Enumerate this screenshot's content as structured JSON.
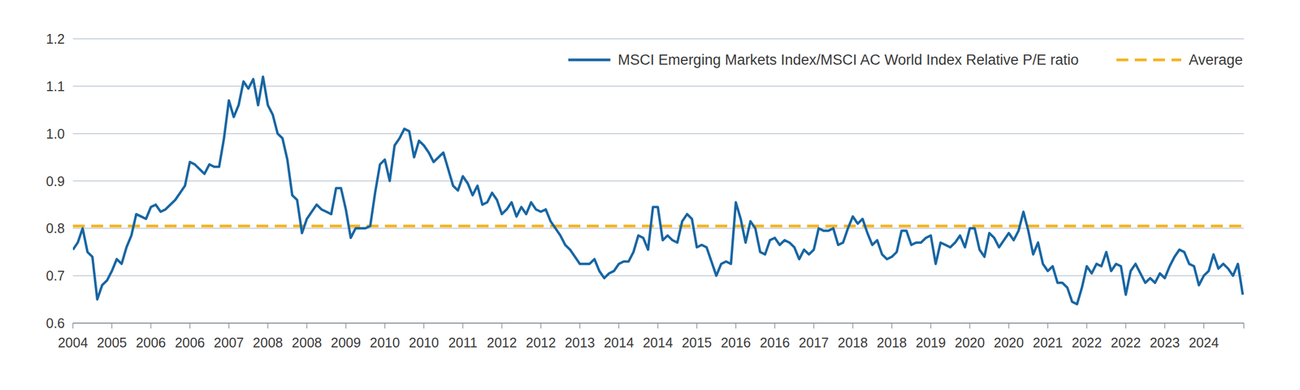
{
  "chart_data": {
    "type": "line",
    "categories": [
      "2004",
      null,
      null,
      null,
      null,
      null,
      null,
      null,
      "2005",
      null,
      null,
      null,
      null,
      null,
      null,
      null,
      "2006",
      null,
      null,
      null,
      null,
      null,
      null,
      null,
      "2006",
      null,
      null,
      null,
      null,
      null,
      null,
      null,
      "2007",
      null,
      null,
      null,
      null,
      null,
      null,
      null,
      "2008",
      null,
      null,
      null,
      null,
      null,
      null,
      null,
      "2008",
      null,
      null,
      null,
      null,
      null,
      null,
      null,
      "2009",
      null,
      null,
      null,
      null,
      null,
      null,
      null,
      "2010",
      null,
      null,
      null,
      null,
      null,
      null,
      null,
      "2010",
      null,
      null,
      null,
      null,
      null,
      null,
      null,
      "2011",
      null,
      null,
      null,
      null,
      null,
      null,
      null,
      "2012",
      null,
      null,
      null,
      null,
      null,
      null,
      null,
      "2012",
      null,
      null,
      null,
      null,
      null,
      null,
      null,
      "2013",
      null,
      null,
      null,
      null,
      null,
      null,
      null,
      "2014",
      null,
      null,
      null,
      null,
      null,
      null,
      null,
      "2014",
      null,
      null,
      null,
      null,
      null,
      null,
      null,
      "2015",
      null,
      null,
      null,
      null,
      null,
      null,
      null,
      "2016",
      null,
      null,
      null,
      null,
      null,
      null,
      null,
      "2016",
      null,
      null,
      null,
      null,
      null,
      null,
      null,
      "2017",
      null,
      null,
      null,
      null,
      null,
      null,
      null,
      "2018",
      null,
      null,
      null,
      null,
      null,
      null,
      null,
      "2018",
      null,
      null,
      null,
      null,
      null,
      null,
      null,
      "2019",
      null,
      null,
      null,
      null,
      null,
      null,
      null,
      "2020",
      null,
      null,
      null,
      null,
      null,
      null,
      null,
      "2020",
      null,
      null,
      null,
      null,
      null,
      null,
      null,
      "2021",
      null,
      null,
      null,
      null,
      null,
      null,
      null,
      "2022",
      null,
      null,
      null,
      null,
      null,
      null,
      null,
      "2022",
      null,
      null,
      null,
      null,
      null,
      null,
      null,
      "2023",
      null,
      null,
      null,
      null,
      null,
      null,
      null,
      "2024",
      null,
      null,
      null,
      null,
      null,
      null,
      null,
      null
    ],
    "series": [
      {
        "name": "MSCI Emerging Markets Index/MSCI AC World Index Relative P/E ratio",
        "color": "#1866a3",
        "values": [
          0.755,
          0.77,
          0.8,
          0.75,
          0.74,
          0.65,
          0.68,
          0.69,
          0.71,
          0.735,
          0.725,
          0.76,
          0.785,
          0.83,
          0.825,
          0.82,
          0.845,
          0.85,
          0.835,
          0.84,
          0.85,
          0.86,
          0.875,
          0.89,
          0.94,
          0.935,
          0.925,
          0.915,
          0.935,
          0.93,
          0.93,
          0.99,
          1.07,
          1.035,
          1.06,
          1.11,
          1.095,
          1.115,
          1.06,
          1.12,
          1.06,
          1.04,
          1.0,
          0.99,
          0.945,
          0.87,
          0.86,
          0.79,
          0.82,
          0.835,
          0.85,
          0.84,
          0.835,
          0.83,
          0.885,
          0.885,
          0.84,
          0.78,
          0.8,
          0.8,
          0.8,
          0.805,
          0.875,
          0.935,
          0.945,
          0.9,
          0.975,
          0.99,
          1.01,
          1.005,
          0.95,
          0.985,
          0.975,
          0.96,
          0.94,
          0.95,
          0.96,
          0.925,
          0.89,
          0.88,
          0.91,
          0.895,
          0.87,
          0.89,
          0.85,
          0.855,
          0.875,
          0.86,
          0.83,
          0.84,
          0.855,
          0.825,
          0.845,
          0.83,
          0.855,
          0.84,
          0.835,
          0.84,
          0.815,
          0.8,
          0.785,
          0.765,
          0.755,
          0.74,
          0.725,
          0.725,
          0.725,
          0.735,
          0.71,
          0.695,
          0.705,
          0.71,
          0.725,
          0.73,
          0.73,
          0.75,
          0.785,
          0.78,
          0.755,
          0.845,
          0.845,
          0.775,
          0.785,
          0.775,
          0.77,
          0.815,
          0.83,
          0.82,
          0.76,
          0.765,
          0.76,
          0.73,
          0.7,
          0.725,
          0.73,
          0.725,
          0.855,
          0.82,
          0.77,
          0.815,
          0.8,
          0.75,
          0.745,
          0.775,
          0.78,
          0.765,
          0.775,
          0.77,
          0.76,
          0.735,
          0.755,
          0.745,
          0.755,
          0.8,
          0.795,
          0.795,
          0.8,
          0.765,
          0.77,
          0.8,
          0.825,
          0.81,
          0.82,
          0.79,
          0.765,
          0.775,
          0.745,
          0.735,
          0.74,
          0.75,
          0.795,
          0.795,
          0.765,
          0.77,
          0.77,
          0.78,
          0.785,
          0.725,
          0.77,
          0.765,
          0.76,
          0.77,
          0.785,
          0.76,
          0.8,
          0.8,
          0.755,
          0.74,
          0.79,
          0.78,
          0.76,
          0.775,
          0.79,
          0.775,
          0.795,
          0.835,
          0.795,
          0.745,
          0.77,
          0.725,
          0.71,
          0.72,
          0.685,
          0.685,
          0.675,
          0.645,
          0.64,
          0.675,
          0.72,
          0.705,
          0.725,
          0.72,
          0.75,
          0.71,
          0.725,
          0.72,
          0.66,
          0.71,
          0.725,
          0.705,
          0.685,
          0.695,
          0.685,
          0.705,
          0.695,
          0.72,
          0.74,
          0.755,
          0.75,
          0.725,
          0.72,
          0.68,
          0.7,
          0.71,
          0.745,
          0.715,
          0.725,
          0.715,
          0.7,
          0.725,
          0.66
        ]
      }
    ],
    "reference_lines": [
      {
        "name": "Average",
        "value": 0.805,
        "color": "#f5b21b",
        "line_style": "dashed"
      }
    ],
    "ylim": [
      0.6,
      1.2
    ],
    "yticks": [
      0.6,
      0.7,
      0.8,
      0.9,
      {
        "value": 1,
        "label": "1.0"
      },
      1.1,
      1.2
    ],
    "grid": true,
    "legend": "upper right"
  }
}
